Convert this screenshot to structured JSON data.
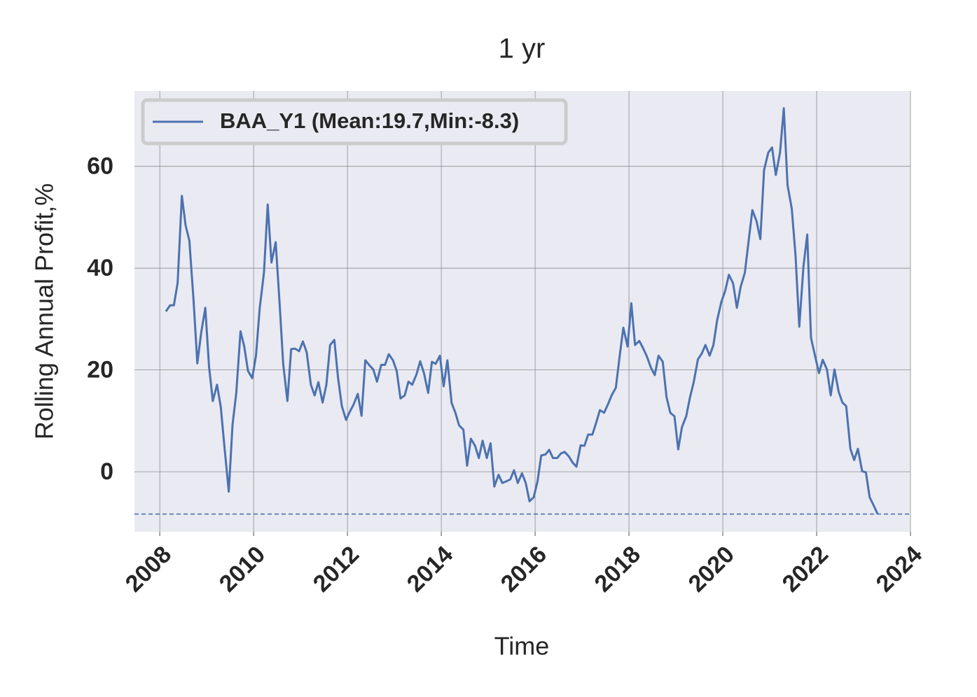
{
  "chart_data": {
    "type": "line",
    "title": "1 yr",
    "xlabel": "Time",
    "ylabel": "Rolling Annual Profit,%",
    "xlim": [
      2007.46,
      2024
    ],
    "ylim": [
      -11.8,
      74.8
    ],
    "xticks": [
      2008,
      2010,
      2012,
      2014,
      2016,
      2018,
      2020,
      2022,
      2024
    ],
    "yticks": [
      0,
      20,
      40,
      60
    ],
    "grid": true,
    "legend": "upper left",
    "x": [
      2008.13,
      2008.22,
      2008.3,
      2008.38,
      2008.47,
      2008.55,
      2008.63,
      2008.72,
      2008.8,
      2008.88,
      2008.97,
      2009.05,
      2009.13,
      2009.22,
      2009.3,
      2009.38,
      2009.47,
      2009.55,
      2009.63,
      2009.72,
      2009.8,
      2009.88,
      2009.97,
      2010.05,
      2010.13,
      2010.22,
      2010.3,
      2010.38,
      2010.47,
      2010.55,
      2010.63,
      2010.72,
      2010.8,
      2010.88,
      2010.97,
      2011.05,
      2011.13,
      2011.22,
      2011.3,
      2011.38,
      2011.47,
      2011.55,
      2011.63,
      2011.72,
      2011.8,
      2011.88,
      2011.97,
      2012.05,
      2012.13,
      2012.22,
      2012.3,
      2012.38,
      2012.47,
      2012.55,
      2012.63,
      2012.72,
      2012.8,
      2012.88,
      2012.97,
      2013.05,
      2013.13,
      2013.22,
      2013.3,
      2013.38,
      2013.47,
      2013.55,
      2013.63,
      2013.72,
      2013.8,
      2013.88,
      2013.97,
      2014.05,
      2014.13,
      2014.22,
      2014.3,
      2014.38,
      2014.47,
      2014.55,
      2014.63,
      2014.72,
      2014.8,
      2014.88,
      2014.97,
      2015.05,
      2015.13,
      2015.22,
      2015.3,
      2015.38,
      2015.47,
      2015.55,
      2015.63,
      2015.72,
      2015.8,
      2015.88,
      2015.97,
      2016.05,
      2016.13,
      2016.22,
      2016.3,
      2016.38,
      2016.47,
      2016.55,
      2016.63,
      2016.72,
      2016.8,
      2016.88,
      2016.97,
      2017.05,
      2017.13,
      2017.22,
      2017.3,
      2017.38,
      2017.47,
      2017.55,
      2017.63,
      2017.72,
      2017.8,
      2017.88,
      2017.97,
      2018.05,
      2018.13,
      2018.22,
      2018.3,
      2018.38,
      2018.47,
      2018.55,
      2018.63,
      2018.72,
      2018.8,
      2018.88,
      2018.97,
      2019.05,
      2019.13,
      2019.22,
      2019.3,
      2019.38,
      2019.47,
      2019.55,
      2019.63,
      2019.72,
      2019.8,
      2019.88,
      2019.97,
      2020.05,
      2020.13,
      2020.22,
      2020.3,
      2020.38,
      2020.47,
      2020.55,
      2020.63,
      2020.72,
      2020.8,
      2020.88,
      2020.97,
      2021.05,
      2021.13,
      2021.22,
      2021.3,
      2021.38,
      2021.47,
      2021.55,
      2021.63,
      2021.72,
      2021.8,
      2021.88,
      2021.97,
      2022.05,
      2022.13,
      2022.22,
      2022.3,
      2022.38,
      2022.47,
      2022.55,
      2022.63,
      2022.72,
      2022.8,
      2022.88,
      2022.97,
      2023.05,
      2023.13,
      2023.22,
      2023.3
    ],
    "series": [
      {
        "name": "BAA_Y1 (Mean:19.7,Min:-8.3)",
        "color": "#4c72b0",
        "values": [
          31.5,
          32.7,
          32.7,
          37.1,
          54.2,
          48.4,
          45.4,
          33.6,
          21.3,
          27.2,
          32.2,
          20.6,
          13.9,
          17.1,
          12.7,
          4.7,
          -3.9,
          9.2,
          15.5,
          27.6,
          24.6,
          19.8,
          18.4,
          22.8,
          32.2,
          39.1,
          52.5,
          41.1,
          45.1,
          33.6,
          21.2,
          13.9,
          24.1,
          24.2,
          23.7,
          25.6,
          23.5,
          17.1,
          15.0,
          17.6,
          13.6,
          17.1,
          24.9,
          25.9,
          18.4,
          12.9,
          10.2,
          11.8,
          13.2,
          15.3,
          11.0,
          21.9,
          20.9,
          20.1,
          17.7,
          21.0,
          21.0,
          23.1,
          21.9,
          19.8,
          14.4,
          15.0,
          17.7,
          17.1,
          19.1,
          21.7,
          19.4,
          15.5,
          21.6,
          21.2,
          22.8,
          16.8,
          21.9,
          13.5,
          11.6,
          9.1,
          8.3,
          1.2,
          6.5,
          5.1,
          2.7,
          6.1,
          2.7,
          5.6,
          -2.9,
          -0.6,
          -2.2,
          -1.9,
          -1.5,
          0.3,
          -2.2,
          -0.3,
          -2.2,
          -5.8,
          -5.0,
          -1.9,
          3.2,
          3.4,
          4.3,
          2.7,
          2.7,
          3.6,
          3.9,
          3.0,
          1.8,
          1.0,
          5.2,
          5.1,
          7.3,
          7.3,
          9.6,
          12.1,
          11.6,
          13.2,
          15.0,
          16.5,
          22.6,
          28.3,
          24.6,
          33.1,
          24.9,
          25.7,
          24.3,
          22.7,
          20.4,
          19.0,
          22.8,
          21.6,
          14.7,
          11.6,
          10.9,
          4.4,
          8.8,
          10.9,
          14.6,
          17.6,
          22.1,
          23.2,
          24.9,
          22.8,
          24.9,
          29.8,
          33.4,
          35.5,
          38.7,
          37.0,
          32.2,
          36.3,
          39.1,
          45.3,
          51.4,
          49.2,
          45.7,
          59.3,
          62.7,
          63.7,
          58.3,
          62.7,
          71.4,
          56.3,
          51.7,
          42.5,
          28.5,
          40.4,
          46.6,
          26.3,
          22.6,
          19.4,
          22.0,
          20.1,
          15.0,
          20.1,
          15.7,
          13.6,
          12.9,
          4.5,
          2.3,
          4.5,
          0.1,
          -0.1,
          -5.0,
          -6.7,
          -8.3
        ]
      }
    ],
    "hline": {
      "value": -8.3,
      "color": "#4c72b0",
      "style": "dashed"
    }
  }
}
